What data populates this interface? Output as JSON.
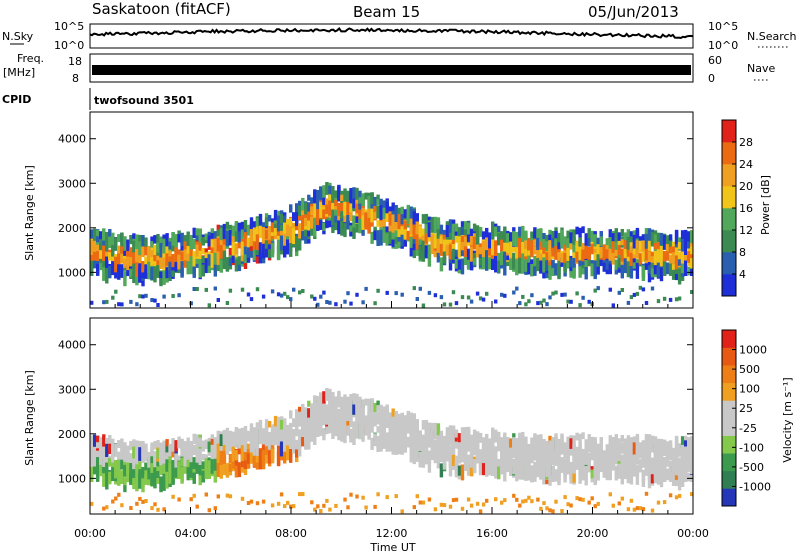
{
  "header": {
    "station": "Saskatoon (fitACF)",
    "beam": "Beam 15",
    "date": "05/Jun/2013"
  },
  "top_panels": {
    "nsky": {
      "label": "N.Sky",
      "ticks": [
        "10^5",
        "10^0"
      ]
    },
    "nsearch": {
      "label": "N.Search",
      "ticks": [
        "10^5",
        "10^0"
      ]
    },
    "freq": {
      "label_line1": "Freq.",
      "label_line2": "[MHz]",
      "ticks": [
        "18",
        "8"
      ]
    },
    "nave": {
      "label": "Nave",
      "ticks": [
        "60",
        "0"
      ]
    },
    "cpid": {
      "label": "CPID",
      "program": "twofsound 3501"
    }
  },
  "colors": {
    "power": [
      "#1f2fd8",
      "#2a5fb0",
      "#3b8a52",
      "#52a85a",
      "#f0c419",
      "#f0a020",
      "#ec6a12",
      "#e0221a"
    ],
    "velocity": [
      "#2536b8",
      "#2f7f52",
      "#3c9a4e",
      "#84c84c",
      "#c8c8c8",
      "#c8c8c8",
      "#f0a020",
      "#ee7f16",
      "#e85a14",
      "#e0221a"
    ]
  },
  "chart_data": [
    {
      "type": "heatmap",
      "title": "",
      "xlabel": "Time UT",
      "ylabel": "Slant Range [km]",
      "x_ticks": [
        "00:00",
        "04:00",
        "08:00",
        "12:00",
        "16:00",
        "20:00",
        "00:00"
      ],
      "y_ticks": [
        "1000",
        "2000",
        "3000",
        "4000"
      ],
      "ylim": [
        200,
        4600
      ],
      "colorbar": {
        "label": "Power [dB]",
        "ticks": [
          "4",
          "8",
          "12",
          "16",
          "20",
          "24",
          "28"
        ],
        "range": [
          0,
          32
        ]
      },
      "echo_band_center_km": {
        "hours": [
          0,
          2,
          4,
          6,
          8,
          9.5,
          12,
          14,
          16,
          18,
          20,
          22,
          24
        ],
        "values": [
          1600,
          1400,
          1550,
          1750,
          2100,
          2650,
          2200,
          1750,
          1700,
          1550,
          1600,
          1550,
          1500
        ]
      }
    },
    {
      "type": "heatmap",
      "title": "",
      "xlabel": "Time UT",
      "ylabel": "Slant Range [km]",
      "x_ticks": [
        "00:00",
        "04:00",
        "08:00",
        "12:00",
        "16:00",
        "20:00",
        "00:00"
      ],
      "y_ticks": [
        "1000",
        "2000",
        "3000",
        "4000"
      ],
      "ylim": [
        200,
        4600
      ],
      "colorbar": {
        "label": "Velocity [m s⁻¹]",
        "ticks": [
          "1000",
          "500",
          "100",
          "25",
          "-25",
          "-100",
          "-500",
          "-1000"
        ]
      },
      "echo_band_center_km": {
        "hours": [
          0,
          2,
          4,
          6,
          8,
          9.5,
          12,
          14,
          16,
          18,
          20,
          22,
          24
        ],
        "values": [
          1600,
          1400,
          1550,
          1750,
          2100,
          2650,
          2200,
          1750,
          1700,
          1550,
          1600,
          1550,
          1500
        ]
      }
    }
  ]
}
